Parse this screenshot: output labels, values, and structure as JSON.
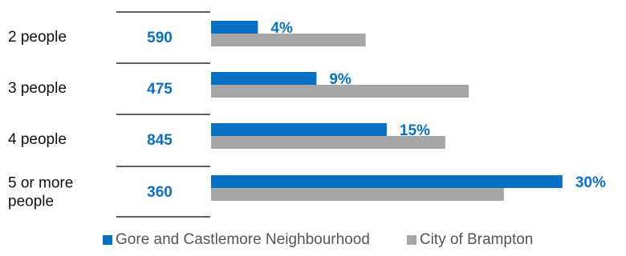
{
  "chart_data": {
    "type": "bar",
    "categories": [
      "2 people",
      "3 people",
      "4 people",
      "5 or more people"
    ],
    "counts": [
      "590",
      "475",
      "845",
      "360"
    ],
    "series": [
      {
        "name": "Gore and Castlemore Neighbourhood",
        "values": [
          4,
          9,
          15,
          30
        ],
        "labels": [
          "4%",
          "9%",
          "15%",
          "30%"
        ],
        "color": "#0a70c6"
      },
      {
        "name": "City of Brampton",
        "values": [
          13.2,
          22.0,
          20.0,
          25.0
        ],
        "color": "#a6a6a6"
      }
    ],
    "xlim": [
      0,
      32
    ],
    "orientation": "horizontal",
    "grid": false,
    "legend_position": "bottom"
  },
  "colors": {
    "accent": "#0a70c6",
    "secondary": "#a6a6a6",
    "count_text": "#0a70c6"
  }
}
